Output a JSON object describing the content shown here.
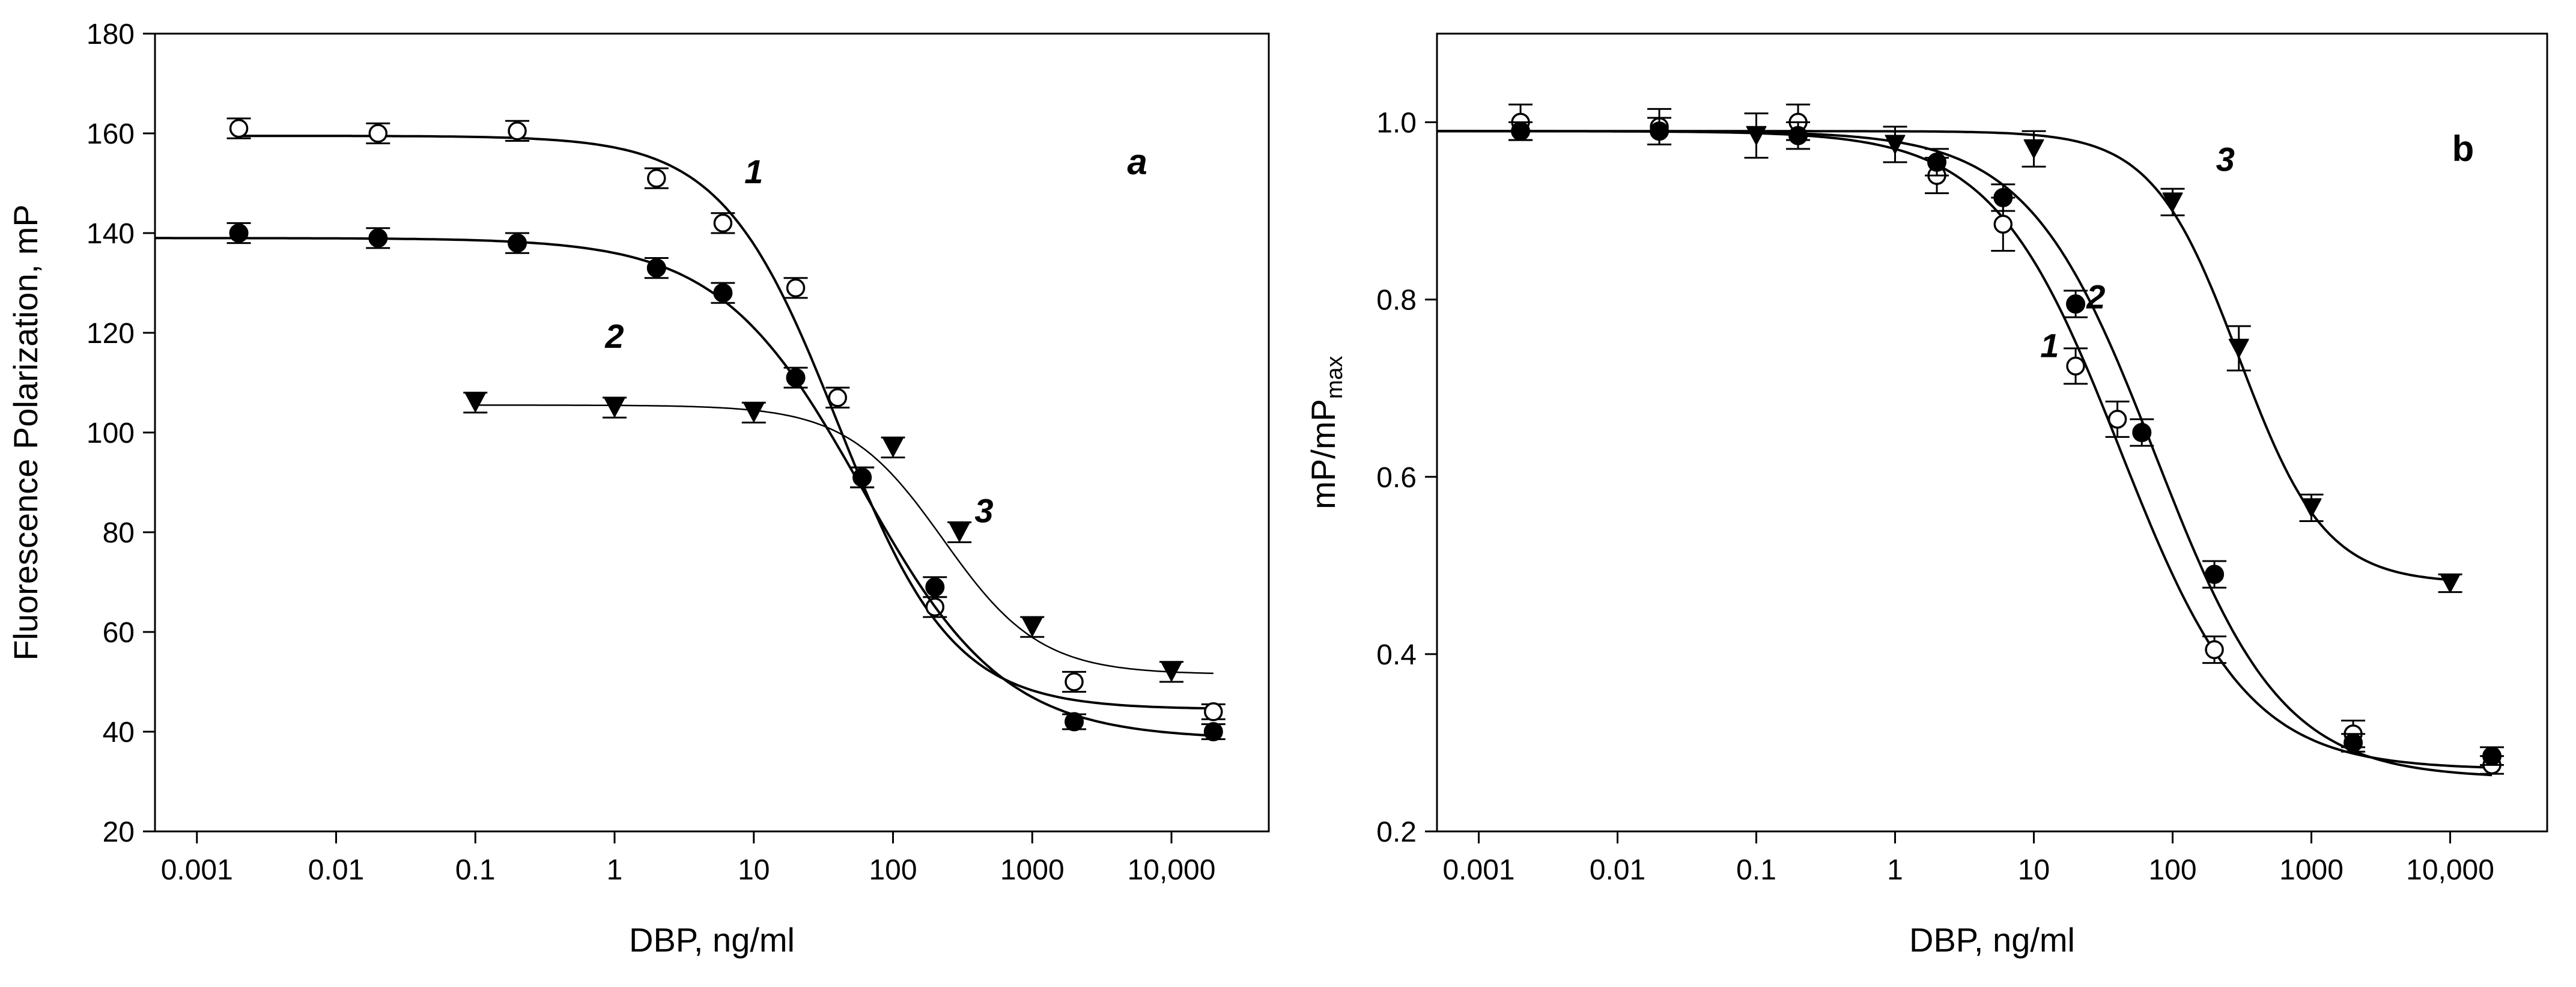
{
  "chart_data": [
    {
      "type": "scatter",
      "panel_label": "a",
      "title": "",
      "xlabel": "DBP, ng/ml",
      "ylabel": "Fluorescence Polarization, mP",
      "xscale": "log",
      "xlim": [
        0.0005,
        50000
      ],
      "ylim": [
        20,
        180
      ],
      "xticks": [
        0.001,
        0.01,
        0.1,
        1,
        10,
        100,
        1000,
        10000
      ],
      "xtick_labels": [
        "0.001",
        "0.01",
        "0.1",
        "1",
        "10",
        "100",
        "1000",
        "10,000"
      ],
      "yticks": [
        20,
        40,
        60,
        80,
        100,
        120,
        140,
        160,
        180
      ],
      "ytick_labels": [
        "20",
        "40",
        "60",
        "80",
        "100",
        "120",
        "140",
        "160",
        "180"
      ],
      "series": [
        {
          "name": "1",
          "marker": "open-circle",
          "x": [
            0.002,
            0.02,
            0.2,
            2,
            6,
            20,
            40,
            60,
            200,
            2000,
            20000
          ],
          "y": [
            161,
            160,
            160.5,
            151,
            142,
            129,
            107,
            91,
            65,
            50,
            44
          ],
          "err": [
            2,
            2,
            2,
            2,
            2,
            2,
            2,
            2,
            2,
            2,
            1.5
          ],
          "fit": {
            "top": 159.5,
            "bottom": 44.5,
            "ic50": 40,
            "slope": 1.05,
            "x_from": 0.002,
            "x_to": 20000,
            "stroke": 4
          },
          "label_at": [
            10,
            150
          ]
        },
        {
          "name": "2",
          "marker": "filled-circle",
          "x": [
            0.002,
            0.02,
            0.2,
            2,
            6,
            20,
            60,
            200,
            2000,
            20000
          ],
          "y": [
            140,
            139,
            138,
            133,
            128,
            111,
            91,
            69,
            42,
            40
          ],
          "err": [
            2,
            2,
            2,
            2,
            2,
            2,
            2,
            2,
            1.5,
            1.5
          ],
          "fit": {
            "top": 139,
            "bottom": 38.5,
            "ic50": 60,
            "slope": 0.85,
            "x_from": 0.0005,
            "x_to": 20000,
            "stroke": 4
          },
          "label_at": [
            1,
            117
          ]
        },
        {
          "name": "3",
          "marker": "filled-triangle-down",
          "x": [
            0.1,
            1,
            10,
            100,
            300,
            1000,
            10000
          ],
          "y": [
            106,
            105,
            104,
            97,
            80,
            61,
            52
          ],
          "err": [
            2,
            2,
            2,
            2,
            2,
            2,
            2
          ],
          "fit": {
            "top": 105.5,
            "bottom": 51.5,
            "ic50": 230,
            "slope": 1.25,
            "x_from": 0.1,
            "x_to": 20000,
            "stroke": 2.5
          },
          "label_at": [
            450,
            82
          ]
        }
      ]
    },
    {
      "type": "scatter",
      "panel_label": "b",
      "title": "",
      "xlabel": "DBP, ng/ml",
      "ylabel": "mP/mP",
      "ylabel_subscript": "max",
      "xscale": "log",
      "xlim": [
        0.0005,
        50000
      ],
      "ylim": [
        0.2,
        1.1
      ],
      "xticks": [
        0.001,
        0.01,
        0.1,
        1,
        10,
        100,
        1000,
        10000
      ],
      "xtick_labels": [
        "0.001",
        "0.01",
        "0.1",
        "1",
        "10",
        "100",
        "1000",
        "10,000"
      ],
      "yticks": [
        0.2,
        0.4,
        0.6,
        0.8,
        1.0
      ],
      "ytick_labels": [
        "0.2",
        "0.4",
        "0.6",
        "0.8",
        "1.0"
      ],
      "series": [
        {
          "name": "1",
          "marker": "open-circle",
          "x": [
            0.002,
            0.02,
            0.2,
            2,
            6,
            20,
            40,
            200,
            2000,
            20000
          ],
          "y": [
            1.0,
            0.995,
            1.0,
            0.94,
            0.885,
            0.725,
            0.665,
            0.405,
            0.31,
            0.275
          ],
          "err": [
            0.02,
            0.02,
            0.02,
            0.02,
            0.03,
            0.02,
            0.02,
            0.015,
            0.015,
            0.01
          ],
          "fit": {
            "top": 0.99,
            "bottom": 0.27,
            "ic50": 42,
            "slope": 0.95,
            "x_from": 0.0005,
            "x_to": 20000,
            "stroke": 4
          },
          "label_at": [
            13,
            0.735
          ]
        },
        {
          "name": "2",
          "marker": "filled-circle",
          "x": [
            0.002,
            0.02,
            0.2,
            2,
            6,
            20,
            60,
            200,
            2000,
            20000
          ],
          "y": [
            0.99,
            0.99,
            0.985,
            0.955,
            0.915,
            0.795,
            0.65,
            0.49,
            0.3,
            0.285
          ],
          "err": [
            0.01,
            0.015,
            0.015,
            0.015,
            0.015,
            0.015,
            0.015,
            0.015,
            0.01,
            0.01
          ],
          "fit": {
            "top": 0.99,
            "bottom": 0.26,
            "ic50": 75,
            "slope": 0.95,
            "x_from": 0.0005,
            "x_to": 20000,
            "stroke": 4
          },
          "label_at": [
            28,
            0.79
          ]
        },
        {
          "name": "3",
          "marker": "filled-triangle-down",
          "x": [
            0.1,
            1,
            10,
            100,
            300,
            1000,
            10000
          ],
          "y": [
            0.985,
            0.975,
            0.97,
            0.91,
            0.745,
            0.565,
            0.48
          ],
          "err": [
            0.025,
            0.02,
            0.02,
            0.015,
            0.025,
            0.015,
            0.01
          ],
          "fit": {
            "top": 0.99,
            "bottom": 0.48,
            "ic50": 300,
            "slope": 1.4,
            "x_from": 0.0005,
            "x_to": 10000,
            "stroke": 4
          },
          "label_at": [
            240,
            0.945
          ]
        }
      ]
    }
  ]
}
